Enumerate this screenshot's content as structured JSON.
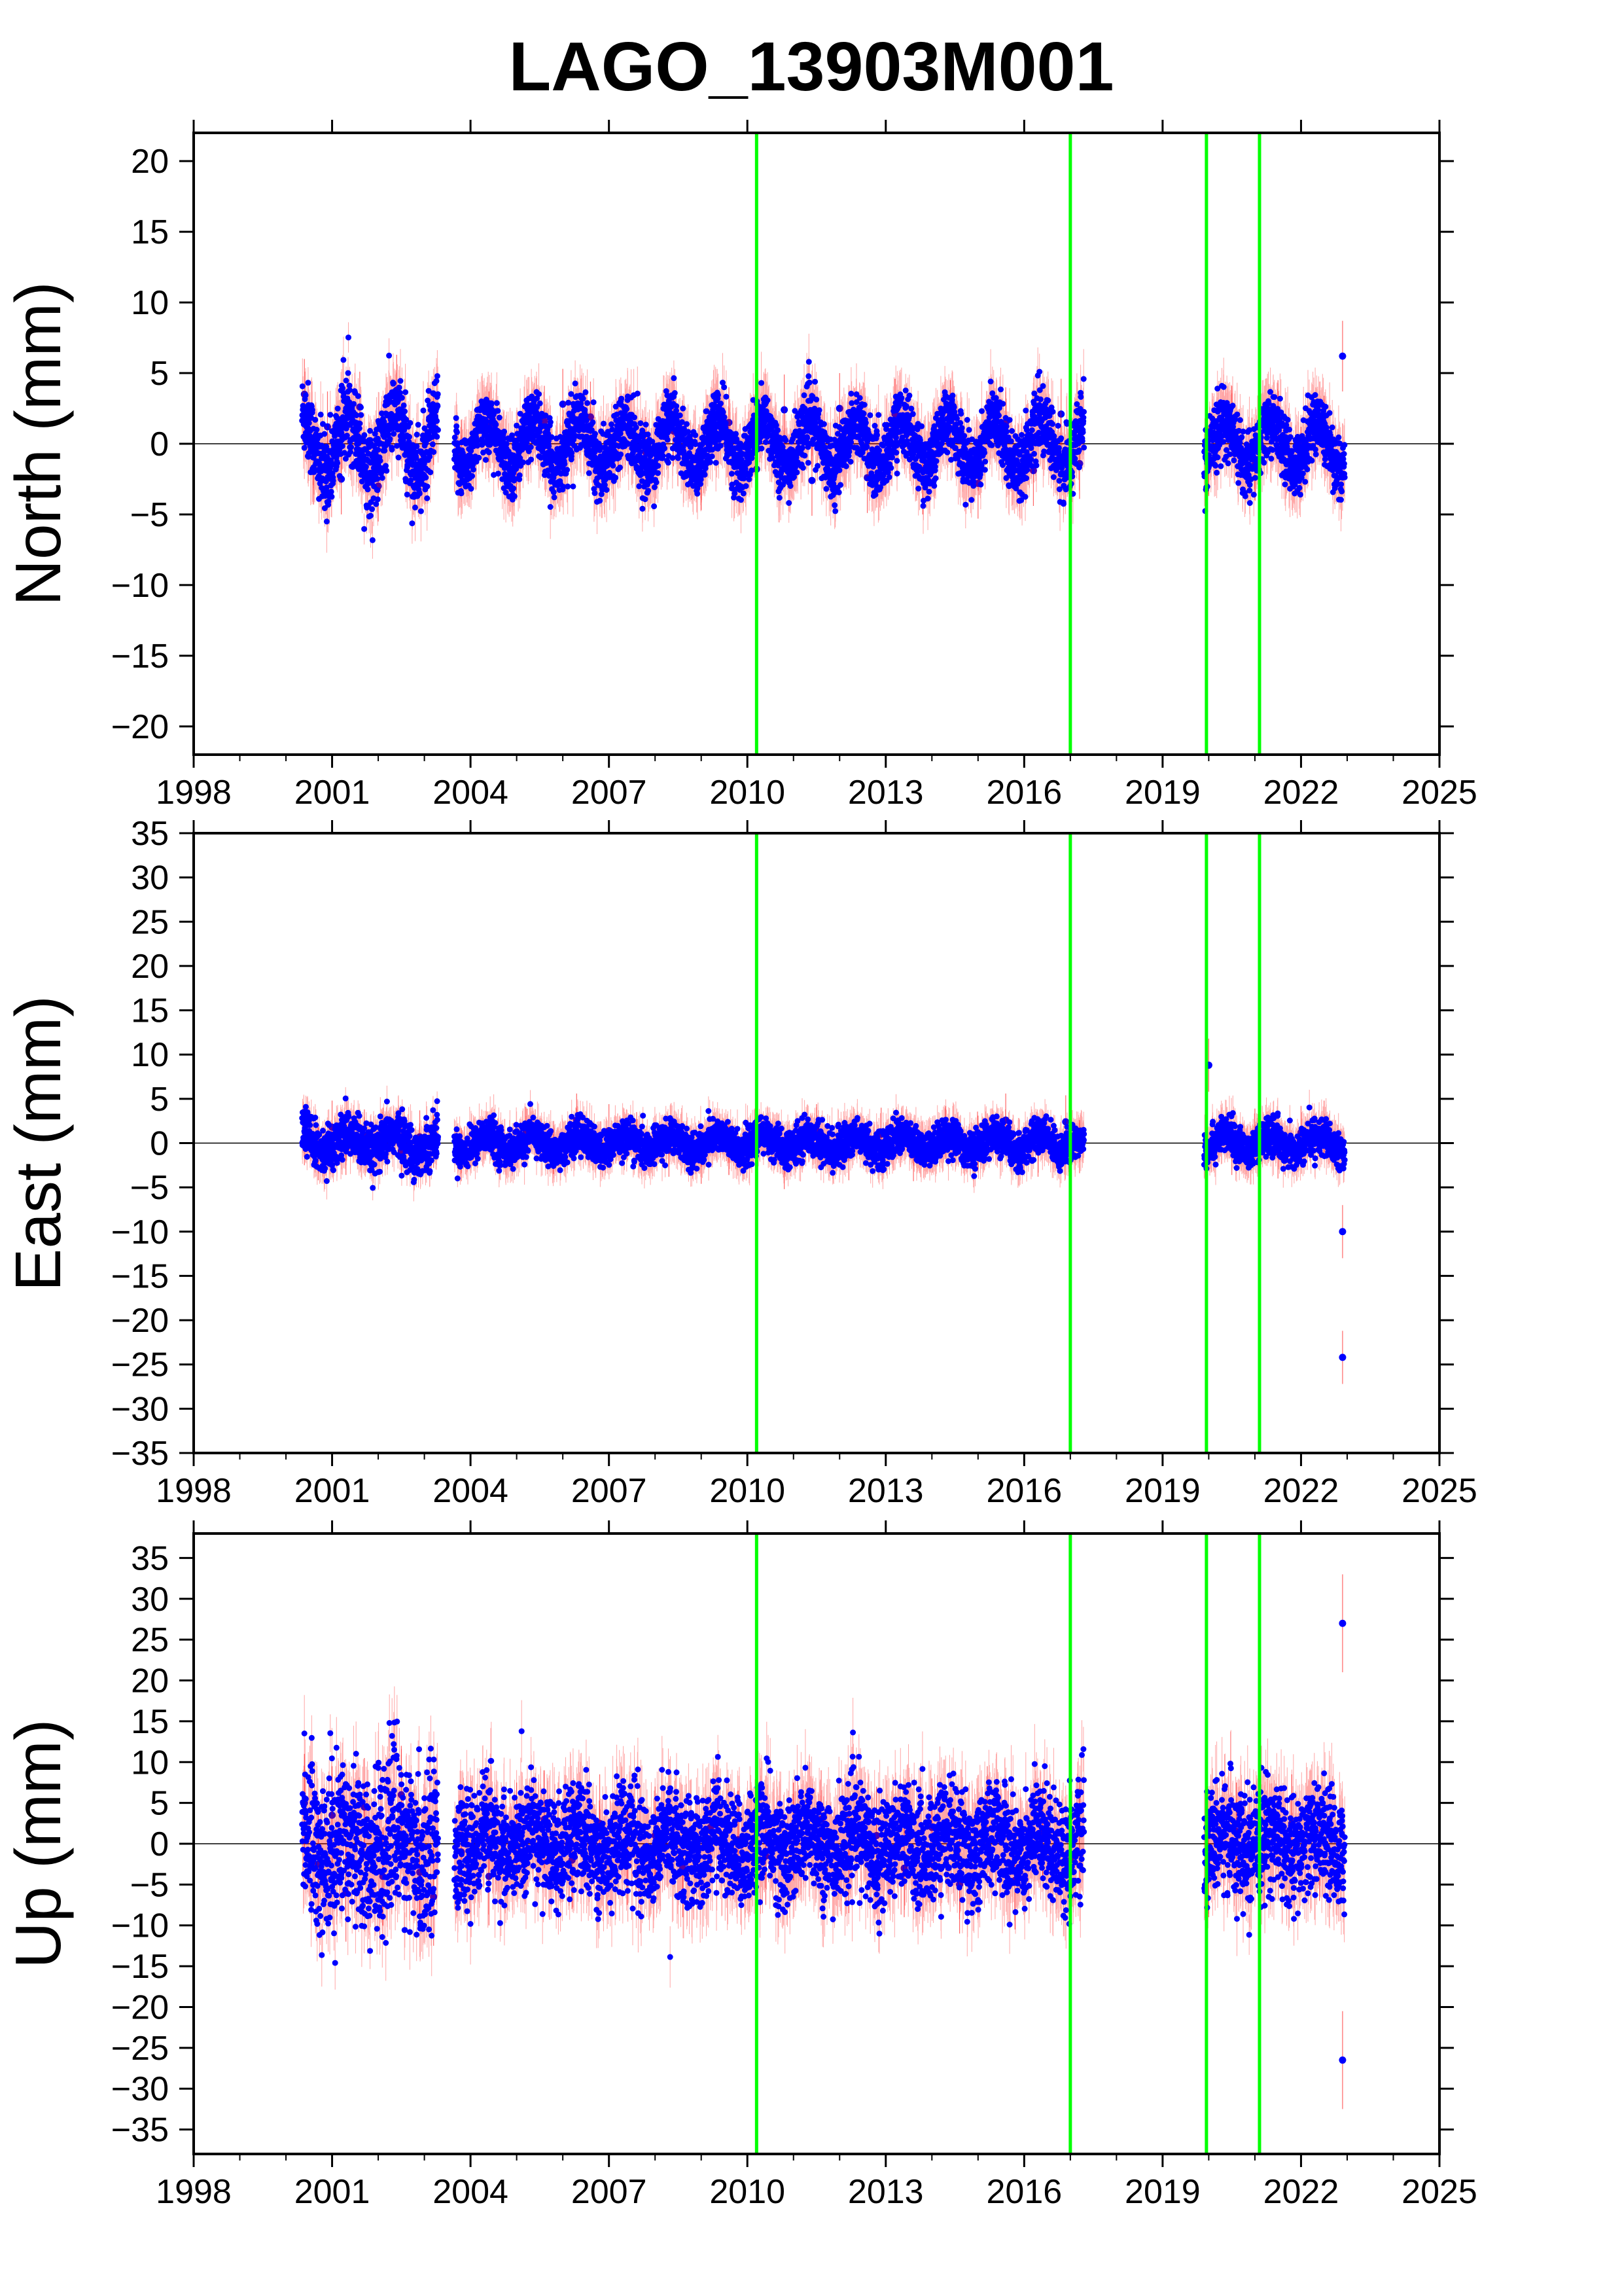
{
  "title": "LAGO_13903M001",
  "colors": {
    "points": "#0000ff",
    "error_bars": "#ff0000",
    "event_lines": "#00ff00",
    "zero_line": "#000000",
    "frame": "#000000"
  },
  "chart_data": [
    {
      "type": "scatter",
      "ylabel": "North (mm)",
      "xlim": [
        1998,
        2025
      ],
      "ylim": [
        -22,
        22
      ],
      "x_ticks": [
        "1998",
        "2001",
        "2004",
        "2007",
        "2010",
        "2013",
        "2016",
        "2019",
        "2022",
        "2025"
      ],
      "y_ticks": [
        "20",
        "15",
        "10",
        "5",
        "0",
        "−5",
        "−10",
        "−15",
        "−20"
      ],
      "event_lines_x": [
        2010.2,
        2017.0,
        2019.95,
        2021.1
      ],
      "series": [
        {
          "x": [
            2000.4,
            2000.6,
            2000.9,
            2001.2,
            2001.6,
            2002.0,
            2002.4,
            2002.8,
            2003.2,
            2003.8,
            2004.4,
            2005.0,
            2005.6,
            2006.0,
            2006.6,
            2007.2,
            2007.8,
            2008.4,
            2009.0,
            2009.6,
            2010.2,
            2010.8,
            2011.4,
            2012.0,
            2012.6,
            2013.2,
            2013.8,
            2014.4,
            2015.0,
            2015.6,
            2016.2,
            2016.8,
            2017.2,
            2020.0,
            2020.5,
            2021.0,
            2021.5,
            2022.0,
            2022.5,
            2022.9
          ],
          "y": [
            3.5,
            -1.8,
            1.2,
            -2.5,
            2.6,
            -3.0,
            3.8,
            -2.2,
            1.0,
            -0.8,
            1.2,
            -1.5,
            1.6,
            2.8,
            1.9,
            0.8,
            -0.6,
            0.9,
            -2.2,
            1.5,
            -1.8,
            2.4,
            -2.6,
            2.5,
            -2.4,
            2.1,
            -2.5,
            2.0,
            -2.8,
            1.5,
            -1.9,
            2.1,
            -1.4,
            -1.2,
            1.6,
            -1.5,
            2.0,
            -1.3,
            0.9,
            6.2
          ]
        }
      ]
    },
    {
      "type": "scatter",
      "ylabel": "East (mm)",
      "xlim": [
        1998,
        2025
      ],
      "ylim": [
        -35,
        35
      ],
      "x_ticks": [
        "1998",
        "2001",
        "2004",
        "2007",
        "2010",
        "2013",
        "2016",
        "2019",
        "2022",
        "2025"
      ],
      "y_ticks": [
        "35",
        "30",
        "25",
        "20",
        "15",
        "10",
        "5",
        "0",
        "−5",
        "−10",
        "−15",
        "−20",
        "−25",
        "−30",
        "−35"
      ],
      "event_lines_x": [
        2010.2,
        2017.0,
        2019.95,
        2021.1
      ],
      "series": [
        {
          "x": [
            2000.4,
            2000.7,
            2001.0,
            2001.3,
            2001.7,
            2002.1,
            2002.5,
            2002.9,
            2003.2,
            2003.8,
            2004.5,
            2005.2,
            2005.8,
            2006.3,
            2007.0,
            2007.6,
            2008.3,
            2009.0,
            2009.6,
            2010.2,
            2010.8,
            2011.5,
            2012.2,
            2012.9,
            2013.6,
            2014.3,
            2015.0,
            2015.6,
            2016.3,
            2016.9,
            2017.2,
            2020.0,
            2020.5,
            2021.0,
            2021.5,
            2022.0,
            2022.5,
            2022.9,
            2022.9
          ],
          "y": [
            0.5,
            -1.2,
            1.8,
            -0.6,
            0.8,
            1.0,
            -0.9,
            0.7,
            0.2,
            -1.3,
            0.4,
            1.1,
            -0.5,
            2.6,
            1.4,
            0.5,
            -0.8,
            -1.6,
            -0.6,
            1.5,
            -2.2,
            1.4,
            -1.2,
            1.0,
            -1.3,
            1.2,
            0.1,
            2.6,
            -0.8,
            2.4,
            -0.4,
            8.8,
            -0.6,
            0.9,
            -1.0,
            1.2,
            1.8,
            -10.0,
            -24.2
          ]
        }
      ]
    },
    {
      "type": "scatter",
      "ylabel": "Up (mm)",
      "xlim": [
        1998,
        2025
      ],
      "ylim": [
        -38,
        38
      ],
      "x_ticks": [
        "1998",
        "2001",
        "2004",
        "2007",
        "2010",
        "2013",
        "2016",
        "2019",
        "2022",
        "2025"
      ],
      "y_ticks": [
        "35",
        "30",
        "25",
        "20",
        "15",
        "10",
        "5",
        "0",
        "−5",
        "−10",
        "−15",
        "−20",
        "−25",
        "−30",
        "−35"
      ],
      "event_lines_x": [
        2010.2,
        2017.0,
        2019.95,
        2021.1
      ],
      "series": [
        {
          "x": [
            2000.4,
            2000.7,
            2001.0,
            2001.3,
            2001.7,
            2002.1,
            2002.5,
            2002.9,
            2003.2,
            2003.8,
            2004.4,
            2005.0,
            2005.6,
            2006.2,
            2006.8,
            2007.4,
            2008.0,
            2008.6,
            2009.2,
            2009.8,
            2010.4,
            2011.0,
            2011.6,
            2012.2,
            2012.8,
            2013.4,
            2014.0,
            2014.6,
            2015.2,
            2015.8,
            2016.4,
            2017.0,
            2017.2,
            2020.0,
            2020.6,
            2021.2,
            2021.8,
            2022.4,
            2022.9,
            2022.9
          ],
          "y": [
            5.0,
            -2.5,
            3.5,
            -6.0,
            4.5,
            -4.0,
            6.0,
            -3.5,
            -6.5,
            -1.0,
            -4.0,
            1.5,
            3.0,
            -2.0,
            2.5,
            -1.5,
            1.0,
            -3.0,
            2.0,
            0.5,
            -1.5,
            1.5,
            3.0,
            -2.5,
            1.0,
            -3.0,
            2.0,
            -5.0,
            3.5,
            -4.5,
            1.5,
            -2.0,
            1.8,
            -3.0,
            1.5,
            -2.0,
            2.5,
            -1.0,
            27.0,
            -26.5
          ]
        }
      ]
    }
  ]
}
